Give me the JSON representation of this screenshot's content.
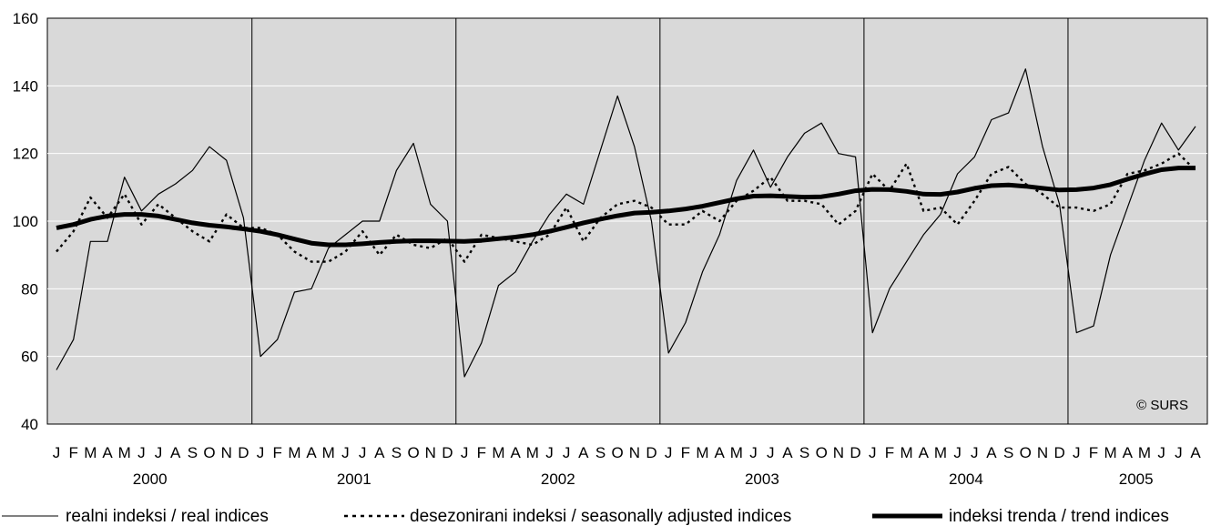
{
  "copyright": "© SURS",
  "chart_data": {
    "type": "line",
    "ylim": [
      40,
      160
    ],
    "yticks": [
      40,
      60,
      80,
      100,
      120,
      140,
      160
    ],
    "grid": true,
    "month_labels": [
      "J",
      "F",
      "M",
      "A",
      "M",
      "J",
      "J",
      "A",
      "S",
      "O",
      "N",
      "D",
      "J",
      "F",
      "M",
      "A",
      "M",
      "J",
      "J",
      "A",
      "S",
      "O",
      "N",
      "D",
      "J",
      "F",
      "M",
      "A",
      "M",
      "J",
      "J",
      "A",
      "S",
      "O",
      "N",
      "D",
      "J",
      "F",
      "M",
      "A",
      "M",
      "J",
      "J",
      "A",
      "S",
      "O",
      "N",
      "D",
      "J",
      "F",
      "M",
      "A",
      "M",
      "J",
      "J",
      "A",
      "S",
      "O",
      "N",
      "D",
      "J",
      "F",
      "M",
      "A",
      "M",
      "J",
      "J",
      "A"
    ],
    "years": [
      "2000",
      "2001",
      "2002",
      "2003",
      "2004",
      "2005"
    ],
    "legend_position": "bottom",
    "series": [
      {
        "name": "realni indeksi / real indices",
        "style": "thin",
        "values": [
          56,
          65,
          94,
          94,
          113,
          103,
          108,
          111,
          115,
          122,
          118,
          101,
          60,
          65,
          79,
          80,
          92,
          96,
          100,
          100,
          115,
          123,
          105,
          100,
          54,
          64,
          81,
          85,
          94,
          102,
          108,
          105,
          121,
          137,
          122,
          100,
          61,
          70,
          85,
          96,
          112,
          121,
          110,
          119,
          126,
          129,
          120,
          119,
          67,
          80,
          88,
          96,
          102,
          114,
          119,
          130,
          132,
          145,
          122,
          105,
          67,
          69,
          90,
          104,
          118,
          129,
          121,
          128
        ]
      },
      {
        "name": "desezonirani indeksi / seasonally adjusted indices",
        "style": "dotted",
        "values": [
          91,
          97,
          107,
          101,
          108,
          99,
          105,
          101,
          97,
          94,
          102,
          98,
          98,
          96,
          91,
          88,
          88,
          91,
          97,
          90,
          96,
          93,
          92,
          95,
          88,
          96,
          95,
          94,
          93,
          96,
          104,
          94,
          101,
          105,
          106,
          104,
          99,
          99,
          103,
          100,
          106,
          109,
          113,
          106,
          106,
          105,
          99,
          103,
          114,
          109,
          117,
          103,
          104,
          99,
          106,
          114,
          116,
          111,
          108,
          104,
          104,
          103,
          105,
          114,
          115,
          117,
          120,
          115
        ]
      },
      {
        "name": "indeksi trenda / trend indices",
        "style": "thick",
        "values": [
          98,
          99,
          100.5,
          101.5,
          102,
          102,
          101.5,
          100.5,
          99.5,
          98.8,
          98.3,
          97.7,
          97,
          96,
          94.7,
          93.5,
          93,
          93,
          93.3,
          93.7,
          94,
          94.2,
          94.2,
          94.1,
          94,
          94.3,
          94.8,
          95.3,
          96,
          97,
          98.2,
          99.5,
          100.6,
          101.6,
          102.4,
          102.6,
          103,
          103.6,
          104.4,
          105.5,
          106.6,
          107.4,
          107.5,
          107.3,
          107.1,
          107.2,
          108,
          109,
          109.4,
          109.3,
          108.8,
          108,
          107.9,
          108.6,
          109.7,
          110.5,
          110.7,
          110.3,
          109.7,
          109.2,
          109.3,
          109.8,
          110.8,
          112.4,
          113.9,
          115.2,
          115.7,
          115.7
        ]
      }
    ]
  }
}
